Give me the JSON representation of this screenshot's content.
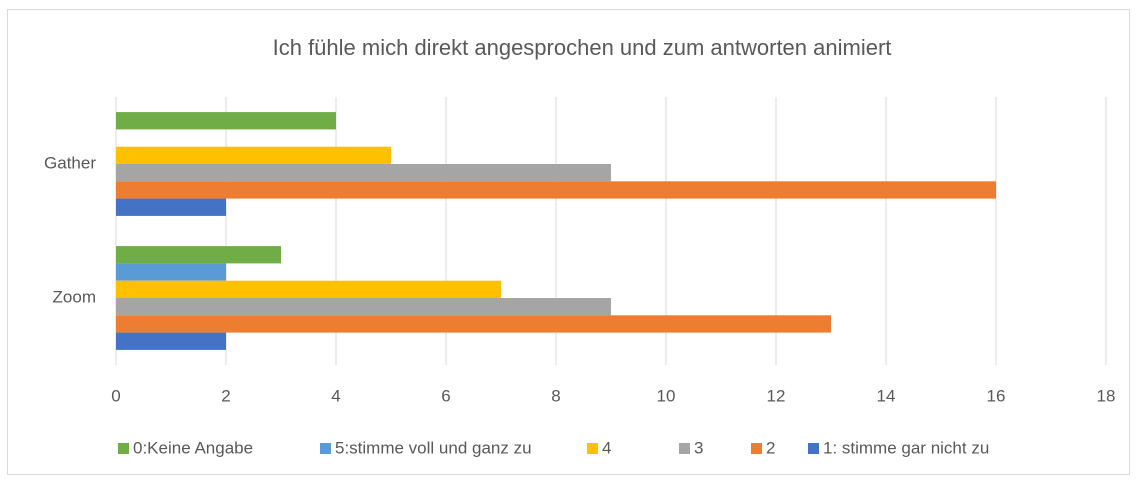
{
  "chart_data": {
    "type": "bar",
    "orientation": "horizontal",
    "title": "Ich fühle mich direkt angesprochen und zum antworten animiert",
    "categories": [
      "Gather",
      "Zoom"
    ],
    "series": [
      {
        "name": "0:Keine Angabe",
        "color": "#70ad47",
        "values": [
          4,
          3
        ]
      },
      {
        "name": "5:stimme voll und ganz zu",
        "color": "#5b9bd5",
        "values": [
          0,
          2
        ]
      },
      {
        "name": "4",
        "color": "#ffc000",
        "values": [
          5,
          7
        ]
      },
      {
        "name": "3",
        "color": "#a5a5a5",
        "values": [
          9,
          9
        ]
      },
      {
        "name": "2",
        "color": "#ed7d31",
        "values": [
          16,
          13
        ]
      },
      {
        "name": "1: stimme gar nicht zu",
        "color": "#4472c4",
        "values": [
          2,
          2
        ]
      }
    ],
    "xlim": [
      0,
      18
    ],
    "xticks": [
      0,
      2,
      4,
      6,
      8,
      10,
      12,
      14,
      16,
      18
    ],
    "grid": true,
    "legend": "bottom"
  }
}
